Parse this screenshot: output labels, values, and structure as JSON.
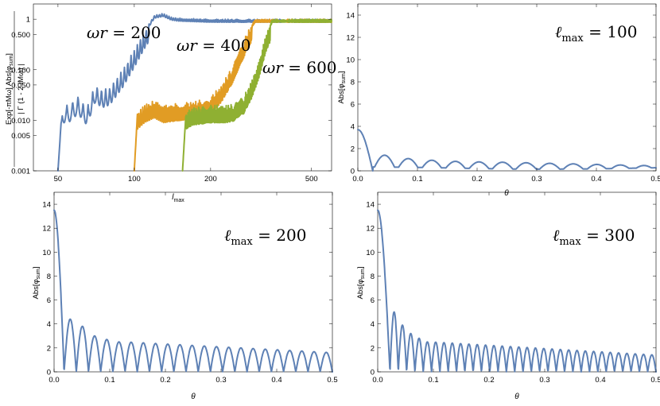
{
  "colors": {
    "blue": "#5e81b5",
    "orange": "#e19c24",
    "green": "#8fb032"
  },
  "chart_data": [
    {
      "type": "line",
      "panel": "top-left",
      "scale": "log-log",
      "xlabel": "l_max",
      "xlabel_main": "l",
      "xlabel_sub": "max",
      "ylabel": "Exp[-πMω] Abs[φsum] / |Γ(1 - 2 iMω)|",
      "ylabel_top": "Exp[-πMω] ",
      "ylabel_abs": "Abs[φ",
      "ylabel_sub": "sum",
      "ylabel_close": "]",
      "ylabel_bottom": "| Γ (1 - 2 iMω) |",
      "xlim": [
        40,
        600
      ],
      "ylim": [
        0.001,
        2
      ],
      "x_ticks": [
        50,
        100,
        200,
        500
      ],
      "x_tick_labels": [
        "50",
        "100",
        "200",
        "500"
      ],
      "y_ticks": [
        0.001,
        0.005,
        0.01,
        0.05,
        0.1,
        0.5,
        1
      ],
      "y_tick_labels": [
        "0.001",
        "0.005",
        "0.010",
        "0.050",
        "0.100",
        "0.500",
        "1"
      ],
      "series": [
        {
          "name": "ωr = 200",
          "color": "blue",
          "onset": 50,
          "x": [
            50,
            52,
            55,
            60,
            65,
            70,
            75,
            80,
            90,
            100,
            110,
            120,
            130,
            140,
            150,
            200,
            300,
            600
          ],
          "y": [
            0.001,
            0.02,
            0.02,
            0.03,
            0.018,
            0.05,
            0.04,
            0.045,
            0.1,
            0.25,
            0.6,
            1.2,
            1.3,
            1.1,
            1.05,
            1.0,
            1.0,
            1.0
          ]
        },
        {
          "name": "ωr = 400",
          "color": "orange",
          "onset": 100,
          "x": [
            100,
            103,
            110,
            120,
            130,
            150,
            180,
            200,
            220,
            250,
            280,
            300,
            400,
            600
          ],
          "y": [
            0.001,
            0.015,
            0.02,
            0.025,
            0.02,
            0.022,
            0.025,
            0.03,
            0.05,
            0.15,
            0.6,
            1.0,
            1.0,
            1.0
          ]
        },
        {
          "name": "ωr = 600",
          "color": "green",
          "onset": 155,
          "x": [
            155,
            160,
            170,
            200,
            230,
            250,
            270,
            290,
            310,
            330,
            350,
            400,
            600
          ],
          "y": [
            0.001,
            0.015,
            0.018,
            0.02,
            0.02,
            0.022,
            0.03,
            0.06,
            0.15,
            0.5,
            1.0,
            1.0,
            1.0
          ]
        }
      ],
      "annotations": [
        {
          "main": "ωr",
          "rest": " = 200",
          "series": 0
        },
        {
          "main": "ωr",
          "rest": " = 400",
          "series": 1
        },
        {
          "main": "ωr",
          "rest": " = 600",
          "series": 2
        }
      ]
    },
    {
      "type": "line",
      "panel": "top-right",
      "xlabel": "θ",
      "ylabel": "Abs[φsum]",
      "ylabel_abs": "Abs[φ",
      "ylabel_sub": "sum",
      "ylabel_close": "]",
      "xlim": [
        0,
        0.5
      ],
      "ylim": [
        0,
        15
      ],
      "x_ticks": [
        0.0,
        0.1,
        0.2,
        0.3,
        0.4,
        0.5
      ],
      "x_tick_labels": [
        "0.0",
        "0.1",
        "0.2",
        "0.3",
        "0.4",
        "0.5"
      ],
      "y_ticks": [
        0,
        2,
        4,
        6,
        8,
        10,
        12,
        14
      ],
      "y_tick_labels": [
        "0",
        "2",
        "4",
        "6",
        "8",
        "10",
        "12",
        "14"
      ],
      "lmax": 100,
      "label_l": "ℓ",
      "label_sub": "max",
      "label_eq": " = 100",
      "peak": 3.7,
      "first_zero": 0.025,
      "lobe_peaks": [
        1.4,
        1.1,
        0.95,
        0.85,
        0.8
      ],
      "envelope_end": 0.45,
      "color": "blue"
    },
    {
      "type": "line",
      "panel": "bottom-left",
      "xlabel": "θ",
      "ylabel": "Abs[φsum]",
      "ylabel_abs": "Abs[φ",
      "ylabel_sub": "sum",
      "ylabel_close": "]",
      "xlim": [
        0,
        0.5
      ],
      "ylim": [
        0,
        15
      ],
      "x_ticks": [
        0.0,
        0.1,
        0.2,
        0.3,
        0.4,
        0.5
      ],
      "x_tick_labels": [
        "0.0",
        "0.1",
        "0.2",
        "0.3",
        "0.4",
        "0.5"
      ],
      "y_ticks": [
        0,
        2,
        4,
        6,
        8,
        10,
        12,
        14
      ],
      "y_tick_labels": [
        "0",
        "2",
        "4",
        "6",
        "8",
        "10",
        "12",
        "14"
      ],
      "lmax": 200,
      "label_l": "ℓ",
      "label_sub": "max",
      "label_eq": " = 200",
      "peak": 13.5,
      "first_zero": 0.018,
      "lobe_peaks": [
        4.4,
        3.8,
        3.0,
        2.7,
        2.5
      ],
      "envelope_end": 1.6,
      "color": "blue"
    },
    {
      "type": "line",
      "panel": "bottom-right",
      "xlabel": "θ",
      "ylabel": "Abs[φsum]",
      "ylabel_abs": "Abs[φ",
      "ylabel_sub": "sum",
      "ylabel_close": "]",
      "xlim": [
        0,
        0.5
      ],
      "ylim": [
        0,
        15
      ],
      "x_ticks": [
        0.0,
        0.1,
        0.2,
        0.3,
        0.4,
        0.5
      ],
      "x_tick_labels": [
        "0.0",
        "0.1",
        "0.2",
        "0.3",
        "0.4",
        "0.5"
      ],
      "y_ticks": [
        0,
        2,
        4,
        6,
        8,
        10,
        12,
        14
      ],
      "y_tick_labels": [
        "0",
        "2",
        "4",
        "6",
        "8",
        "10",
        "12",
        "14"
      ],
      "lmax": 300,
      "label_l": "ℓ",
      "label_sub": "max",
      "label_eq": " = 300",
      "peak": 13.5,
      "first_zero": 0.022,
      "lobe_peaks": [
        5.0,
        3.9,
        3.2,
        2.8,
        2.5
      ],
      "envelope_end": 1.4,
      "color": "blue"
    }
  ]
}
